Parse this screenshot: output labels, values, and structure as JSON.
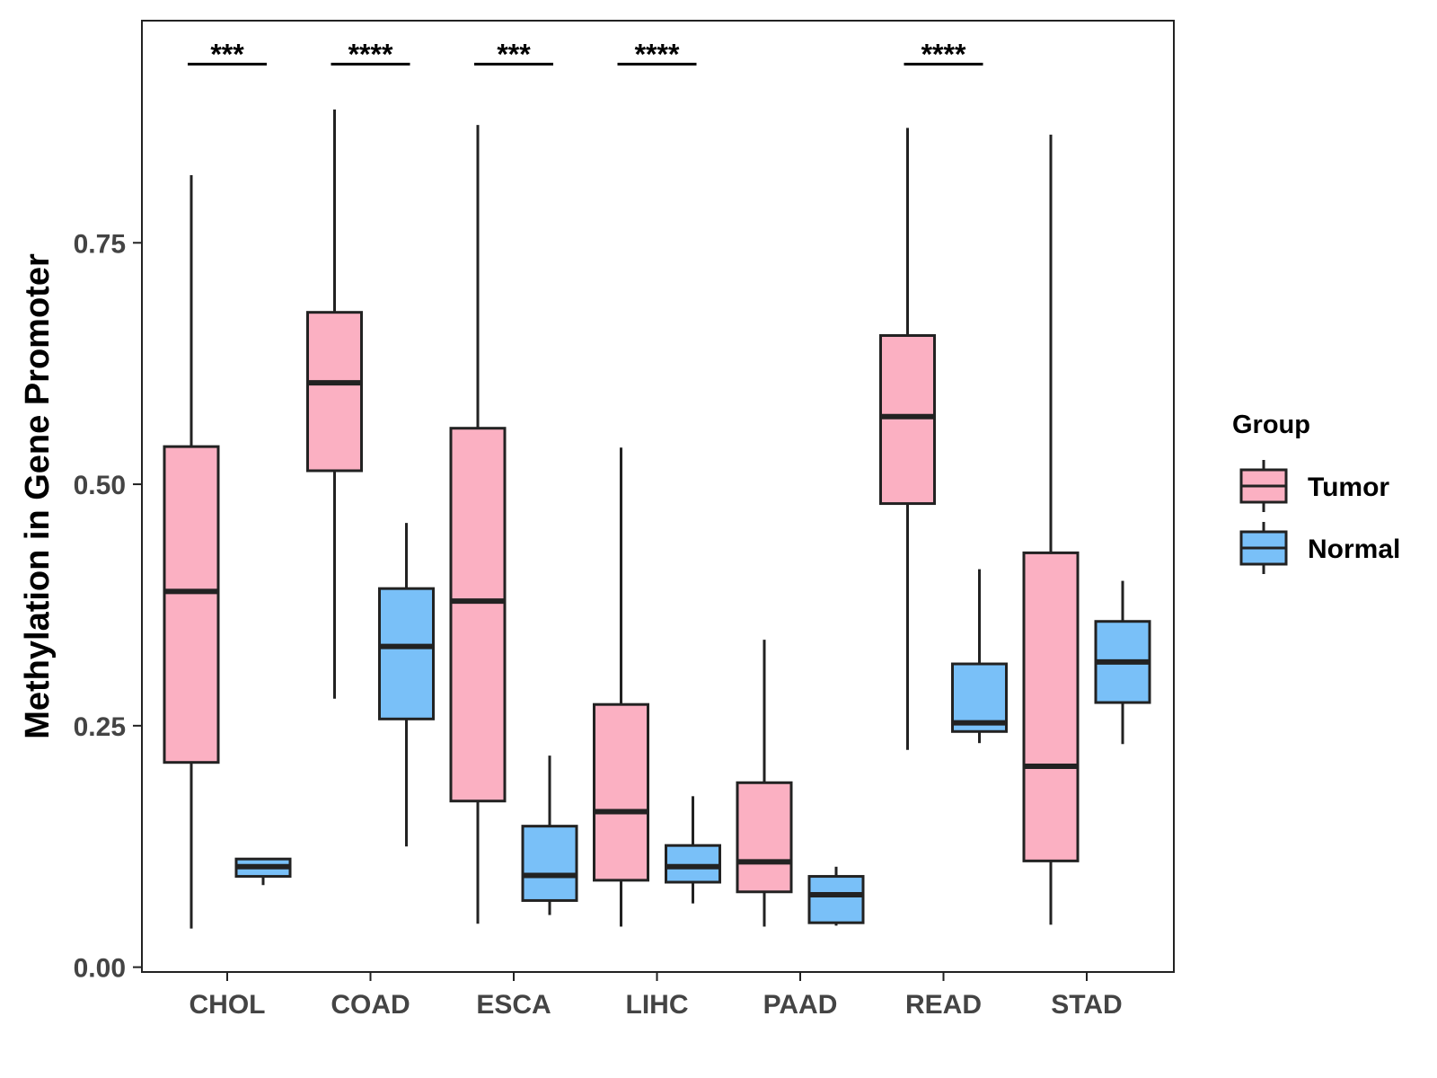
{
  "chart_data": {
    "type": "boxplot",
    "title": "",
    "xlabel": "",
    "ylabel": "Methylation in Gene Promoter",
    "ylim": [
      -0.005,
      0.98
    ],
    "yticks": [
      0.0,
      0.25,
      0.5,
      0.75
    ],
    "ytick_labels": [
      "0.00",
      "0.25",
      "0.50",
      "0.75"
    ],
    "categories": [
      "CHOL",
      "COAD",
      "ESCA",
      "LIHC",
      "PAAD",
      "READ",
      "STAD"
    ],
    "legend": {
      "title": "Group",
      "position": "right",
      "entries": [
        "Tumor",
        "Normal"
      ]
    },
    "colors": {
      "Tumor": "#FBB0C2",
      "Normal": "#79C0F8",
      "stroke": "#222222"
    },
    "series": [
      {
        "name": "Tumor",
        "boxes": [
          {
            "category": "CHOL",
            "min": 0.04,
            "q1": 0.212,
            "median": 0.389,
            "q3": 0.539,
            "max": 0.82
          },
          {
            "category": "COAD",
            "min": 0.278,
            "q1": 0.514,
            "median": 0.605,
            "q3": 0.678,
            "max": 0.888
          },
          {
            "category": "ESCA",
            "min": 0.045,
            "q1": 0.172,
            "median": 0.379,
            "q3": 0.558,
            "max": 0.872
          },
          {
            "category": "LIHC",
            "min": 0.042,
            "q1": 0.09,
            "median": 0.161,
            "q3": 0.272,
            "max": 0.538
          },
          {
            "category": "PAAD",
            "min": 0.042,
            "q1": 0.078,
            "median": 0.109,
            "q3": 0.191,
            "max": 0.339
          },
          {
            "category": "READ",
            "min": 0.225,
            "q1": 0.48,
            "median": 0.57,
            "q3": 0.654,
            "max": 0.869
          },
          {
            "category": "STAD",
            "min": 0.044,
            "q1": 0.11,
            "median": 0.208,
            "q3": 0.429,
            "max": 0.862
          }
        ]
      },
      {
        "name": "Normal",
        "boxes": [
          {
            "category": "CHOL",
            "min": 0.085,
            "q1": 0.094,
            "median": 0.104,
            "q3": 0.112,
            "max": 0.113
          },
          {
            "category": "COAD",
            "min": 0.125,
            "q1": 0.257,
            "median": 0.332,
            "q3": 0.392,
            "max": 0.46
          },
          {
            "category": "ESCA",
            "min": 0.054,
            "q1": 0.069,
            "median": 0.095,
            "q3": 0.146,
            "max": 0.219
          },
          {
            "category": "LIHC",
            "min": 0.066,
            "q1": 0.088,
            "median": 0.104,
            "q3": 0.126,
            "max": 0.177
          },
          {
            "category": "PAAD",
            "min": 0.043,
            "q1": 0.046,
            "median": 0.075,
            "q3": 0.094,
            "max": 0.104
          },
          {
            "category": "READ",
            "min": 0.232,
            "q1": 0.244,
            "median": 0.253,
            "q3": 0.314,
            "max": 0.412
          },
          {
            "category": "STAD",
            "min": 0.231,
            "q1": 0.274,
            "median": 0.316,
            "q3": 0.358,
            "max": 0.4
          }
        ]
      }
    ],
    "annotations": [
      {
        "category": "CHOL",
        "label": "***",
        "y": 0.935
      },
      {
        "category": "COAD",
        "label": "****",
        "y": 0.935
      },
      {
        "category": "ESCA",
        "label": "***",
        "y": 0.935
      },
      {
        "category": "LIHC",
        "label": "****",
        "y": 0.935
      },
      {
        "category": "READ",
        "label": "****",
        "y": 0.935
      }
    ]
  }
}
